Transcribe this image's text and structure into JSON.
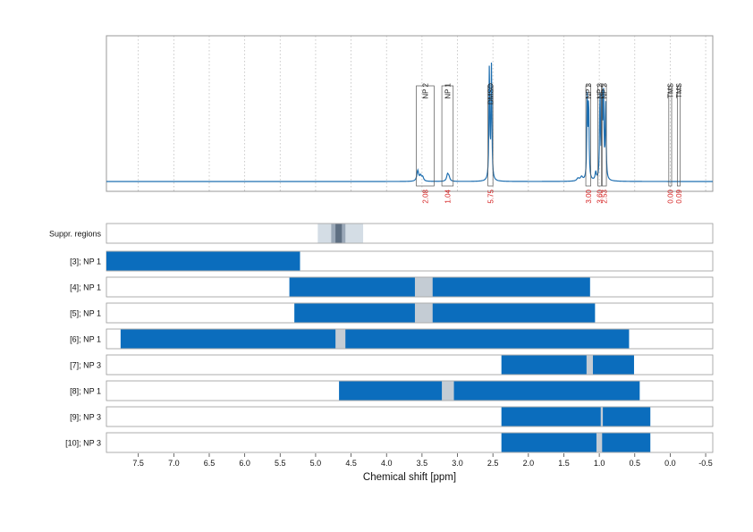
{
  "chart_data": {
    "type": "nmr-spectrum-with-integration-bars",
    "xlabel": "Chemical shift [ppm]",
    "xlim": [
      7.95,
      -0.6
    ],
    "xticks": [
      "7.5",
      "7.0",
      "6.5",
      "6.0",
      "5.5",
      "5.0",
      "4.5",
      "4.0",
      "3.5",
      "3.0",
      "2.5",
      "2.0",
      "1.5",
      "1.0",
      "0.5",
      "0.0",
      "-0.5"
    ],
    "spectrum": {
      "baseline_level": 0.0,
      "peaks": [
        {
          "x": 3.56,
          "height": 0.08,
          "width": 0.015
        },
        {
          "x": 3.52,
          "height": 0.04,
          "width": 0.015
        },
        {
          "x": 3.49,
          "height": 0.03,
          "width": 0.015
        },
        {
          "x": 3.14,
          "height": 0.05,
          "width": 0.015
        },
        {
          "x": 3.12,
          "height": 0.03,
          "width": 0.015
        },
        {
          "x": 2.55,
          "height": 0.85,
          "width": 0.007
        },
        {
          "x": 2.52,
          "height": 0.85,
          "width": 0.007
        },
        {
          "x": 1.25,
          "height": 0.03,
          "width": 0.02
        },
        {
          "x": 1.17,
          "height": 0.62,
          "width": 0.007
        },
        {
          "x": 1.15,
          "height": 0.59,
          "width": 0.007
        },
        {
          "x": 0.99,
          "height": 0.66,
          "width": 0.007
        },
        {
          "x": 0.96,
          "height": 0.64,
          "width": 0.007
        },
        {
          "x": 0.94,
          "height": 0.6,
          "width": 0.007
        },
        {
          "x": 0.91,
          "height": 0.58,
          "width": 0.007
        },
        {
          "x": 1.05,
          "height": 0.06,
          "width": 0.01
        },
        {
          "x": 1.3,
          "height": 0.02,
          "width": 0.02
        }
      ],
      "annotations": [
        {
          "label": "NP 2",
          "x_from": 3.58,
          "x_to": 3.33,
          "integral": "2.08"
        },
        {
          "label": "NP 1",
          "x_from": 3.22,
          "x_to": 3.06,
          "integral": "1.04"
        },
        {
          "label": "DMSO",
          "x_from": 2.57,
          "x_to": 2.5,
          "integral": "5.75"
        },
        {
          "label": "NP 3",
          "x_from": 1.19,
          "x_to": 1.12,
          "integral": "3.00"
        },
        {
          "label": "NP 3",
          "x_from": 1.02,
          "x_to": 0.97,
          "integral": "3.60"
        },
        {
          "label": "NP 3",
          "x_from": 0.96,
          "x_to": 0.9,
          "integral": "2.53"
        },
        {
          "label": "TMS",
          "x_from": 0.02,
          "x_to": -0.02,
          "integral": "0.00"
        },
        {
          "label": "TMS",
          "x_from": -0.1,
          "x_to": -0.14,
          "integral": "0.09"
        }
      ]
    },
    "suppressed_regions": {
      "label": "Suppr. regions",
      "outer": [
        4.97,
        4.33
      ],
      "mid": [
        4.78,
        4.58
      ],
      "inner": [
        4.72,
        4.63
      ]
    },
    "rows": [
      {
        "label": "[3]; NP 1",
        "bar": [
          7.95,
          5.22
        ],
        "gaps": []
      },
      {
        "label": "[4]; NP 1",
        "bar": [
          5.37,
          1.13
        ],
        "gaps": [
          [
            3.6,
            3.35
          ]
        ]
      },
      {
        "label": "[5]; NP 1",
        "bar": [
          5.3,
          1.06
        ],
        "gaps": [
          [
            3.6,
            3.35
          ]
        ]
      },
      {
        "label": "[6]; NP 1",
        "bar": [
          7.75,
          0.58
        ],
        "gaps": [
          [
            4.72,
            4.58
          ]
        ]
      },
      {
        "label": "[7]; NP 3",
        "bar": [
          2.38,
          0.51
        ],
        "gaps": [
          [
            1.18,
            1.09
          ]
        ]
      },
      {
        "label": "[8]; NP 1",
        "bar": [
          4.67,
          0.43
        ],
        "gaps": [
          [
            3.22,
            3.05
          ]
        ]
      },
      {
        "label": "[9]; NP 3",
        "bar": [
          2.38,
          0.28
        ],
        "gaps": [
          [
            0.98,
            0.95
          ]
        ]
      },
      {
        "label": "[10]; NP 3",
        "bar": [
          2.38,
          0.28
        ],
        "gaps": [
          [
            1.04,
            0.96
          ]
        ]
      }
    ],
    "colors": {
      "spectrum": "#1f6fb0",
      "bar": "#0b6dbd",
      "gap": "#c4ccd4",
      "integral_text": "#d41f1f",
      "grid": "#bdbdbd",
      "frame": "#9a9a9a",
      "suppr_outer": "#d4dde5",
      "suppr_mid": "#9aa8b8",
      "suppr_inner": "#5e6f82"
    }
  }
}
